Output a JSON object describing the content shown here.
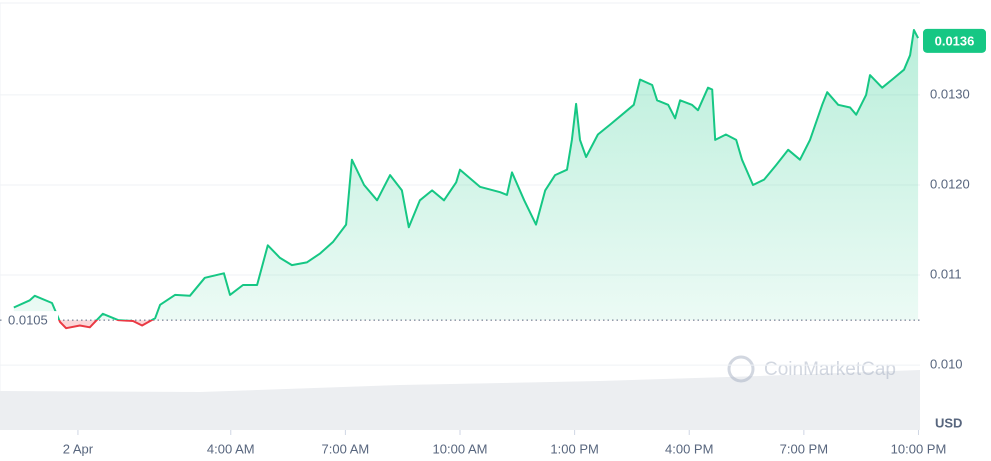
{
  "chart_data": {
    "type": "line",
    "x": [
      -1.68,
      -1.26,
      -1.13,
      -0.68,
      -0.47,
      -0.31,
      0.05,
      0.31,
      0.65,
      1.05,
      1.44,
      1.68,
      2.02,
      2.15,
      2.54,
      2.93,
      3.32,
      3.82,
      3.98,
      4.32,
      4.69,
      4.97,
      5.29,
      5.6,
      5.99,
      6.34,
      6.68,
      7.02,
      7.17,
      7.49,
      7.83,
      8.17,
      8.48,
      8.66,
      8.95,
      9.27,
      9.58,
      9.9,
      10.0,
      10.52,
      11.05,
      11.23,
      11.36,
      11.68,
      11.99,
      12.23,
      12.49,
      12.8,
      12.93,
      13.04,
      13.14,
      13.3,
      13.61,
      13.93,
      14.24,
      14.55,
      14.71,
      15.03,
      15.16,
      15.45,
      15.63,
      15.76,
      16.07,
      16.23,
      16.49,
      16.6,
      16.68,
      16.96,
      17.23,
      17.38,
      17.67,
      17.96,
      18.27,
      18.59,
      18.9,
      19.16,
      19.48,
      19.61,
      19.9,
      20.21,
      20.37,
      20.63,
      20.73,
      21.05,
      21.31,
      21.62,
      21.78,
      21.88,
      21.99
    ],
    "series": [
      {
        "color": "#16c784",
        "values": [
          0.01064,
          0.01072,
          0.01077,
          0.01069,
          0.01048,
          0.01041,
          0.01044,
          0.01042,
          0.01057,
          0.0105,
          0.01049,
          0.01044,
          0.01052,
          0.01067,
          0.01078,
          0.01077,
          0.01097,
          0.01102,
          0.01078,
          0.01089,
          0.01089,
          0.01133,
          0.01119,
          0.01111,
          0.01114,
          0.01124,
          0.01137,
          0.01156,
          0.01228,
          0.012,
          0.01183,
          0.01211,
          0.01194,
          0.01153,
          0.01183,
          0.01194,
          0.01183,
          0.01203,
          0.01217,
          0.01198,
          0.01192,
          0.01189,
          0.01214,
          0.01183,
          0.01156,
          0.01194,
          0.01211,
          0.01217,
          0.0125,
          0.0129,
          0.0125,
          0.01231,
          0.01256,
          0.01267,
          0.01278,
          0.01289,
          0.01317,
          0.01311,
          0.01294,
          0.01289,
          0.01274,
          0.01294,
          0.01289,
          0.01283,
          0.01308,
          0.01306,
          0.0125,
          0.01256,
          0.0125,
          0.01228,
          0.012,
          0.01206,
          0.01222,
          0.01239,
          0.01228,
          0.0125,
          0.01289,
          0.01303,
          0.01289,
          0.01286,
          0.01278,
          0.013,
          0.01322,
          0.01308,
          0.01317,
          0.01328,
          0.01344,
          0.01372,
          0.01363
        ]
      }
    ],
    "below_color": "#ea3943",
    "reference": 0.0105,
    "current": 0.0136,
    "xlim": [
      -2.04,
      22.04
    ],
    "xticks": [
      {
        "value": 0,
        "label": "2 Apr"
      },
      {
        "value": 4,
        "label": "4:00 AM"
      },
      {
        "value": 7,
        "label": "7:00 AM"
      },
      {
        "value": 10,
        "label": "10:00 AM"
      },
      {
        "value": 13,
        "label": "1:00 PM"
      },
      {
        "value": 16,
        "label": "4:00 PM"
      },
      {
        "value": 19,
        "label": "7:00 PM"
      },
      {
        "value": 22,
        "label": "10:00 PM"
      }
    ],
    "ylim": [
      0.00928,
      0.01402
    ],
    "yticks": [
      {
        "value": 0.01,
        "label": "0.010"
      },
      0.011,
      {
        "value": 0.012,
        "label": "0.0120"
      },
      {
        "value": 0.013,
        "label": "0.0130"
      }
    ],
    "y_axis_label": "USD",
    "watermark": "CoinMarketCap",
    "grid": true
  }
}
